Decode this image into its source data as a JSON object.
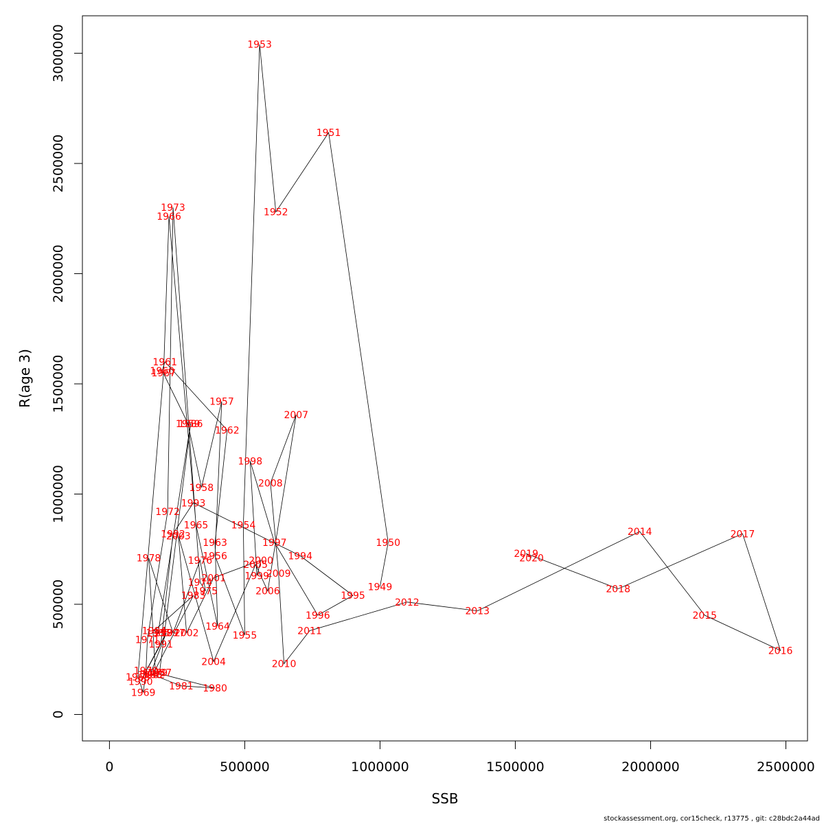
{
  "chart_data": {
    "type": "line",
    "xlabel": "SSB",
    "ylabel": "R(age 3)",
    "xlim": [
      -100000,
      2580000
    ],
    "ylim": [
      -120000,
      3170000
    ],
    "x_ticks": [
      0,
      500000,
      1000000,
      1500000,
      2000000,
      2500000
    ],
    "x_tick_labels": [
      "0",
      "500000",
      "1000000",
      "1500000",
      "2000000",
      "2500000"
    ],
    "y_ticks": [
      0,
      500000,
      1000000,
      1500000,
      2000000,
      2500000,
      3000000
    ],
    "y_tick_labels": [
      "0",
      "500000",
      "1000000",
      "1500000",
      "2000000",
      "2500000",
      "3000000"
    ],
    "grid": false,
    "line_color": "#000000",
    "label_color": "#ff0000",
    "points": [
      {
        "year": "1949",
        "x": 1000000,
        "y": 580000
      },
      {
        "year": "1950",
        "x": 1030000,
        "y": 780000
      },
      {
        "year": "1951",
        "x": 810000,
        "y": 2640000
      },
      {
        "year": "1952",
        "x": 615000,
        "y": 2280000
      },
      {
        "year": "1953",
        "x": 555000,
        "y": 3040000
      },
      {
        "year": "1954",
        "x": 495000,
        "y": 860000
      },
      {
        "year": "1955",
        "x": 500000,
        "y": 360000
      },
      {
        "year": "1956",
        "x": 390000,
        "y": 720000
      },
      {
        "year": "1957",
        "x": 415000,
        "y": 1420000
      },
      {
        "year": "1958",
        "x": 340000,
        "y": 1030000
      },
      {
        "year": "1959",
        "x": 290000,
        "y": 1320000
      },
      {
        "year": "1960",
        "x": 195000,
        "y": 1560000
      },
      {
        "year": "1961",
        "x": 205000,
        "y": 1600000
      },
      {
        "year": "1962",
        "x": 435000,
        "y": 1290000
      },
      {
        "year": "1963",
        "x": 390000,
        "y": 780000
      },
      {
        "year": "1964",
        "x": 400000,
        "y": 400000
      },
      {
        "year": "1965",
        "x": 320000,
        "y": 860000
      },
      {
        "year": "1966",
        "x": 220000,
        "y": 2260000
      },
      {
        "year": "1967",
        "x": 200000,
        "y": 1550000
      },
      {
        "year": "1968",
        "x": 105000,
        "y": 170000
      },
      {
        "year": "1969",
        "x": 125000,
        "y": 100000
      },
      {
        "year": "1970",
        "x": 135000,
        "y": 200000
      },
      {
        "year": "1971",
        "x": 140000,
        "y": 340000
      },
      {
        "year": "1972",
        "x": 215000,
        "y": 920000
      },
      {
        "year": "1973",
        "x": 235000,
        "y": 2300000
      },
      {
        "year": "1974",
        "x": 335000,
        "y": 600000
      },
      {
        "year": "1975",
        "x": 355000,
        "y": 560000
      },
      {
        "year": "1976",
        "x": 335000,
        "y": 700000
      },
      {
        "year": "1977",
        "x": 235000,
        "y": 370000
      },
      {
        "year": "1978",
        "x": 145000,
        "y": 710000
      },
      {
        "year": "1979",
        "x": 170000,
        "y": 190000
      },
      {
        "year": "1980",
        "x": 390000,
        "y": 120000
      },
      {
        "year": "1981",
        "x": 265000,
        "y": 130000
      },
      {
        "year": "1982",
        "x": 160000,
        "y": 180000
      },
      {
        "year": "1983",
        "x": 310000,
        "y": 540000
      },
      {
        "year": "1984",
        "x": 165000,
        "y": 380000
      },
      {
        "year": "1985",
        "x": 180000,
        "y": 370000
      },
      {
        "year": "1986",
        "x": 300000,
        "y": 1320000
      },
      {
        "year": "1987",
        "x": 185000,
        "y": 190000
      },
      {
        "year": "1988",
        "x": 150000,
        "y": 180000
      },
      {
        "year": "1989",
        "x": 210000,
        "y": 370000
      },
      {
        "year": "1990",
        "x": 115000,
        "y": 150000
      },
      {
        "year": "1991",
        "x": 190000,
        "y": 320000
      },
      {
        "year": "1992",
        "x": 235000,
        "y": 820000
      },
      {
        "year": "1993",
        "x": 310000,
        "y": 960000
      },
      {
        "year": "1994",
        "x": 705000,
        "y": 720000
      },
      {
        "year": "1995",
        "x": 900000,
        "y": 540000
      },
      {
        "year": "1996",
        "x": 770000,
        "y": 450000
      },
      {
        "year": "1997",
        "x": 610000,
        "y": 780000
      },
      {
        "year": "1998",
        "x": 520000,
        "y": 1150000
      },
      {
        "year": "1999",
        "x": 545000,
        "y": 630000
      },
      {
        "year": "2000",
        "x": 560000,
        "y": 700000
      },
      {
        "year": "2001",
        "x": 385000,
        "y": 620000
      },
      {
        "year": "2002",
        "x": 285000,
        "y": 370000
      },
      {
        "year": "2003",
        "x": 255000,
        "y": 810000
      },
      {
        "year": "2004",
        "x": 385000,
        "y": 240000
      },
      {
        "year": "2005",
        "x": 540000,
        "y": 680000
      },
      {
        "year": "2006",
        "x": 585000,
        "y": 560000
      },
      {
        "year": "2007",
        "x": 690000,
        "y": 1360000
      },
      {
        "year": "2008",
        "x": 595000,
        "y": 1050000
      },
      {
        "year": "2009",
        "x": 625000,
        "y": 640000
      },
      {
        "year": "2010",
        "x": 645000,
        "y": 230000
      },
      {
        "year": "2011",
        "x": 740000,
        "y": 380000
      },
      {
        "year": "2012",
        "x": 1100000,
        "y": 510000
      },
      {
        "year": "2013",
        "x": 1360000,
        "y": 470000
      },
      {
        "year": "2014",
        "x": 1960000,
        "y": 830000
      },
      {
        "year": "2015",
        "x": 2200000,
        "y": 450000
      },
      {
        "year": "2016",
        "x": 2480000,
        "y": 290000
      },
      {
        "year": "2017",
        "x": 2340000,
        "y": 820000
      },
      {
        "year": "2018",
        "x": 1880000,
        "y": 570000
      },
      {
        "year": "2019",
        "x": 1540000,
        "y": 730000
      },
      {
        "year": "2020",
        "x": 1560000,
        "y": 710000
      }
    ]
  },
  "footer": {
    "text": "stockassessment.org, cor15check, r13775 , git: c28bdc2a44ad"
  }
}
